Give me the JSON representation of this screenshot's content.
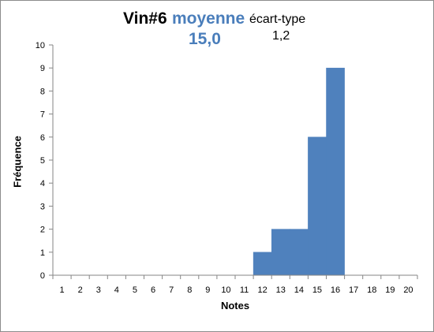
{
  "title": {
    "name": "Vin#6",
    "mean_label": "moyenne",
    "mean_value": "15,0",
    "sd_label": "écart-type",
    "sd_value": "1,2"
  },
  "colors": {
    "bar": "#4f81bd",
    "accent": "#4a7ebb",
    "axis": "#868686"
  },
  "chart_data": {
    "type": "bar",
    "xlabel": "Notes",
    "ylabel": "Fréquence",
    "categories": [
      "1",
      "2",
      "3",
      "4",
      "5",
      "6",
      "7",
      "8",
      "9",
      "10",
      "11",
      "12",
      "13",
      "14",
      "15",
      "16",
      "17",
      "18",
      "19",
      "20"
    ],
    "values": [
      0,
      0,
      0,
      0,
      0,
      0,
      0,
      0,
      0,
      0,
      0,
      1,
      2,
      2,
      6,
      9,
      0,
      0,
      0,
      0
    ],
    "ylim": [
      0,
      10
    ],
    "yticks": [
      "0",
      "1",
      "2",
      "3",
      "4",
      "5",
      "6",
      "7",
      "8",
      "9",
      "10"
    ],
    "grid": false,
    "legend": "none"
  }
}
